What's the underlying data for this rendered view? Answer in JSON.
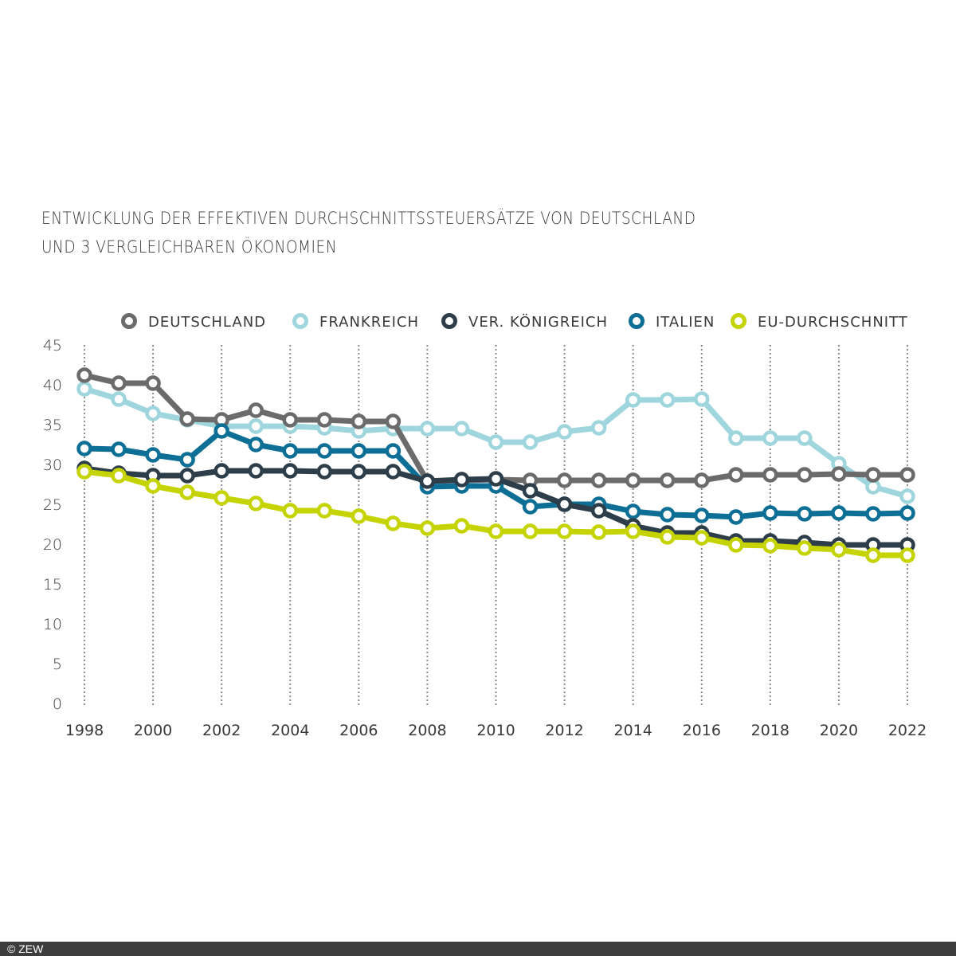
{
  "chart_data": {
    "type": "line",
    "title": "ENTWICKLUNG DER EFFEKTIVEN DURCHSCHNITTSSTEUERSÄTZE VON DEUTSCHLAND UND 3 VERGLEICHBAREN ÖKONOMIEN",
    "title_lines": [
      "ENTWICKLUNG DER EFFEKTIVEN DURCHSCHNITTSSTEUERSÄTZE VON DEUTSCHLAND",
      "UND 3 VERGLEICHBAREN ÖKONOMIEN"
    ],
    "xlabel": "",
    "ylabel": "",
    "x": [
      1998,
      1999,
      2000,
      2001,
      2002,
      2003,
      2004,
      2005,
      2006,
      2007,
      2008,
      2009,
      2010,
      2011,
      2012,
      2013,
      2014,
      2015,
      2016,
      2017,
      2018,
      2019,
      2020,
      2021,
      2022
    ],
    "x_ticks": [
      "1998",
      "2000",
      "2002",
      "2004",
      "2006",
      "2008",
      "2010",
      "2012",
      "2014",
      "2016",
      "2018",
      "2020",
      "2022"
    ],
    "y_ticks": [
      "0",
      "5",
      "10",
      "15",
      "20",
      "25",
      "30",
      "35",
      "40",
      "45"
    ],
    "ylim": [
      0,
      45
    ],
    "xlim": [
      1998,
      2022
    ],
    "grid": "vertical dotted lines at every 2 years",
    "legend_position": "top",
    "series": [
      {
        "name": "DEUTSCHLAND",
        "color": "#6b6b6b",
        "values": [
          41.2,
          40.2,
          40.2,
          35.7,
          35.6,
          36.8,
          35.6,
          35.6,
          35.4,
          35.4,
          27.9,
          28.0,
          28.1,
          28.0,
          28.0,
          28.0,
          28.0,
          28.0,
          28.0,
          28.7,
          28.7,
          28.7,
          28.8,
          28.7,
          28.7
        ]
      },
      {
        "name": "FRANKREICH",
        "color": "#9fd6dd",
        "values": [
          39.5,
          38.2,
          36.4,
          35.6,
          34.8,
          34.8,
          34.8,
          34.6,
          34.2,
          34.5,
          34.5,
          34.5,
          32.8,
          32.8,
          34.1,
          34.6,
          38.1,
          38.1,
          38.2,
          33.3,
          33.3,
          33.3,
          30.1,
          27.2,
          26.0
        ]
      },
      {
        "name": "VER. KÖNIGREICH",
        "color": "#2d3e4a",
        "values": [
          29.5,
          28.9,
          28.6,
          28.6,
          29.2,
          29.2,
          29.2,
          29.1,
          29.1,
          29.1,
          27.9,
          28.1,
          28.2,
          26.7,
          25.0,
          24.2,
          22.3,
          21.4,
          21.4,
          20.4,
          20.4,
          20.2,
          19.9,
          19.9,
          19.9
        ]
      },
      {
        "name": "ITALIEN",
        "color": "#0d6f95",
        "values": [
          32.0,
          31.9,
          31.2,
          30.6,
          34.2,
          32.5,
          31.7,
          31.7,
          31.7,
          31.7,
          27.2,
          27.3,
          27.3,
          24.7,
          25.0,
          25.0,
          24.1,
          23.7,
          23.6,
          23.4,
          23.9,
          23.8,
          23.9,
          23.8,
          23.9
        ]
      },
      {
        "name": "EU-DURCHSCHNITT",
        "color": "#c5d300",
        "values": [
          29.1,
          28.6,
          27.3,
          26.5,
          25.8,
          25.1,
          24.2,
          24.2,
          23.5,
          22.6,
          22.0,
          22.3,
          21.6,
          21.6,
          21.6,
          21.5,
          21.6,
          20.9,
          20.8,
          19.9,
          19.8,
          19.5,
          19.3,
          18.6,
          18.6
        ]
      }
    ]
  },
  "legend": [
    {
      "label": "DEUTSCHLAND",
      "color": "#6b6b6b"
    },
    {
      "label": "FRANKREICH",
      "color": "#9fd6dd"
    },
    {
      "label": "VER. KÖNIGREICH",
      "color": "#2d3e4a"
    },
    {
      "label": "ITALIEN",
      "color": "#0d6f95"
    },
    {
      "label": "EU-DURCHSCHNITT",
      "color": "#c5d300"
    }
  ],
  "footer": {
    "copyright": "© ZEW"
  }
}
